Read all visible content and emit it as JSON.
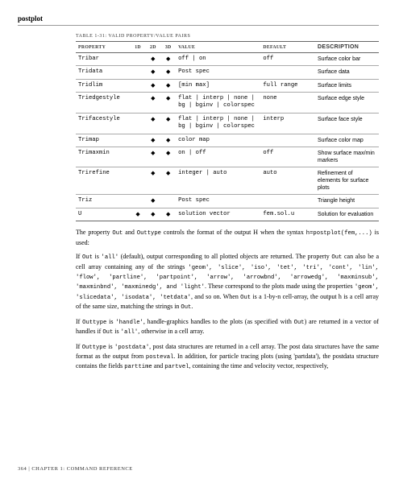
{
  "header": {
    "title": "postplot"
  },
  "table": {
    "caption": "TABLE 1-31: VALID PROPERTY/VALUE PAIRS",
    "columns": [
      "PROPERTY",
      "1D",
      "2D",
      "3D",
      "VALUE",
      "DEFAULT",
      "DESCRIPTION"
    ],
    "diamond": "◆",
    "rows": [
      {
        "property": "Tribar",
        "d1": false,
        "d2": true,
        "d3": true,
        "value": "off | on",
        "default": "off",
        "desc": "Surface color bar"
      },
      {
        "property": "Tridata",
        "d1": false,
        "d2": true,
        "d3": true,
        "value": "Post spec",
        "default": "",
        "desc": "Surface data"
      },
      {
        "property": "Tridlim",
        "d1": false,
        "d2": true,
        "d3": true,
        "value": "[min max]",
        "default": "full range",
        "desc": "Surface limits"
      },
      {
        "property": "Triedgestyle",
        "d1": false,
        "d2": true,
        "d3": true,
        "value": "flat | interp | none | bg | bginv | colorspec",
        "default": "none",
        "desc": "Surface edge style"
      },
      {
        "property": "Trifacestyle",
        "d1": false,
        "d2": true,
        "d3": true,
        "value": "flat | interp | none | bg | bginv | colorspec",
        "default": "interp",
        "desc": "Surface face style"
      },
      {
        "property": "Trimap",
        "d1": false,
        "d2": true,
        "d3": true,
        "value": "color map",
        "default": "",
        "desc": "Surface color map"
      },
      {
        "property": "Trimaxmin",
        "d1": false,
        "d2": true,
        "d3": true,
        "value": "on | off",
        "default": "off",
        "desc": "Show surface max/min markers"
      },
      {
        "property": "Trirefine",
        "d1": false,
        "d2": true,
        "d3": true,
        "value": "integer | auto",
        "default": "auto",
        "desc": "Refinement of elements for surface plots"
      },
      {
        "property": "Triz",
        "d1": false,
        "d2": true,
        "d3": false,
        "value": "Post spec",
        "default": "",
        "desc": "Triangle height"
      },
      {
        "property": "U",
        "d1": true,
        "d2": true,
        "d3": true,
        "value": "solution vector",
        "default": "fem.sol.u",
        "desc": "Solution for evaluation"
      }
    ]
  },
  "body": {
    "p1a": "The property ",
    "p1b": " and ",
    "p1c": " controls the format of the output H when the syntax ",
    "p1d": " is used:",
    "code_out": "Out",
    "code_outtype": "Outtype",
    "code_postplot": "h=postplot(fem,...)",
    "p2a": "If ",
    "p2b": " is ",
    "p2c": " (default), output corresponding to all plotted objects are returned. The property ",
    "p2d": " can also be a cell array containing any of the strings ",
    "p2e": ". These correspond to the plots made using the properties ",
    "p2f": ", and so on. When ",
    "p2g": " is a 1-by-n cell-array, the output h is a cell array of the same size, matching the strings in ",
    "p2h": ".",
    "code_all": "'all'",
    "code_strings": "'geom', 'slice', 'iso', 'tet', 'tri', 'cont', 'lin', 'flow', 'partline', 'partpoint', 'arrow', 'arrowbnd', 'arrowedg', 'maxminsub', 'maxminbnd', 'maxminedg', and 'light'",
    "code_props": "'geom', 'slicedata', 'isodata', 'tetdata'",
    "p3a": "If ",
    "p3b": " is ",
    "p3c": ", handle-graphics handles to the plots (as specified with ",
    "p3d": ") are returned in a vector of handles if ",
    "p3e": " is ",
    "p3f": ", otherwise in a cell array.",
    "code_handle": "'handle'",
    "p4a": "If ",
    "p4b": " is ",
    "p4c": ", post data structures are returned in a cell array. The post data structures have the same format as the output from ",
    "p4d": ". In addition, for particle tracing plots (using 'partdata'), the postdata structure contains the fields ",
    "p4e": " and ",
    "p4f": ", containing the time and velocity vector, respectively,",
    "code_postdata": "'postdata'",
    "code_posteval": "posteval",
    "code_parttime": "parttime",
    "code_partvel": "partvel"
  },
  "footer": {
    "page": "364",
    "sep": " | ",
    "chapter": "CHAPTER 1: COMMAND REFERENCE"
  }
}
